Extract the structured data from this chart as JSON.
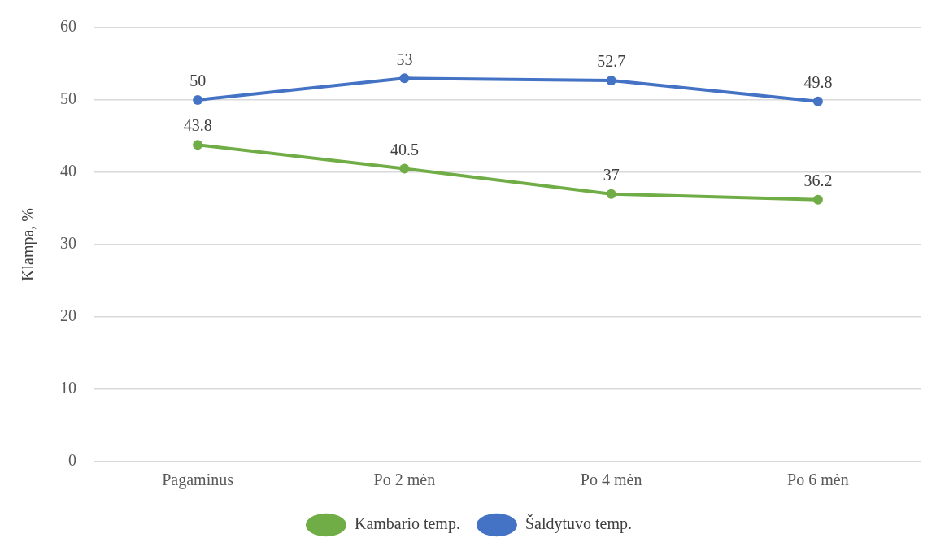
{
  "chart_data": {
    "type": "line",
    "ylabel": "Klampa, %",
    "categories": [
      "Pagaminus",
      "Po 2 mėn",
      "Po 4 mėn",
      "Po 6 mėn"
    ],
    "series": [
      {
        "name": "Kambario temp.",
        "color": "#70ad47",
        "values": [
          43.8,
          40.5,
          37,
          36.2
        ]
      },
      {
        "name": "Šaldytuvo temp.",
        "color": "#4472c4",
        "values": [
          50,
          53,
          52.7,
          49.8
        ]
      }
    ],
    "ylim": [
      0,
      60
    ],
    "yticks": [
      0,
      10,
      20,
      30,
      40,
      50,
      60
    ],
    "grid": "y",
    "legend": "bottom",
    "marker": "circle",
    "line_style": "solid",
    "data_labels": true
  }
}
